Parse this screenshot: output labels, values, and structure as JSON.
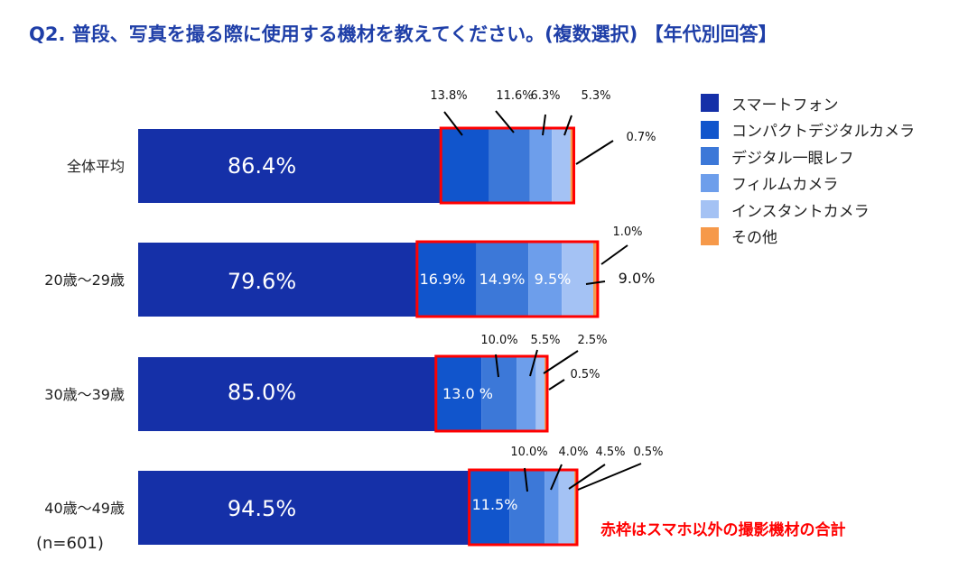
{
  "title": "Q2. 普段、写真を撮る際に使用する機材を教えてください。(複数選択) 【年代別回答】",
  "sample_size": "(n=601)",
  "note": "赤枠はスマホ以外の撮影機材の合計",
  "chart_data": {
    "type": "bar",
    "orientation": "horizontal",
    "stacked": true,
    "categories": [
      "全体平均",
      "20歳～29歳",
      "30歳～39歳",
      "40歳～49歳"
    ],
    "series": [
      {
        "name": "スマートフォン",
        "color": "#1530a8",
        "values": [
          86.4,
          79.6,
          85.0,
          94.5
        ],
        "labels": [
          "86.4%",
          "79.6%",
          "85.0%",
          "94.5%"
        ]
      },
      {
        "name": "コンパクトデジタルカメラ",
        "color": "#1155cc",
        "values": [
          13.8,
          16.9,
          13.0,
          11.5
        ],
        "labels": [
          "13.8%",
          "16.9%",
          "13.0 %",
          "11.5%"
        ]
      },
      {
        "name": "デジタル一眼レフ",
        "color": "#3c78d8",
        "values": [
          11.6,
          14.9,
          10.0,
          10.0
        ],
        "labels": [
          "11.6%",
          "14.9%",
          "10.0%",
          "10.0%"
        ]
      },
      {
        "name": "フィルムカメラ",
        "color": "#6d9eeb",
        "values": [
          6.3,
          9.5,
          5.5,
          4.0
        ],
        "labels": [
          "6.3%",
          "9.5%",
          "5.5%",
          "4.0%"
        ]
      },
      {
        "name": "インスタントカメラ",
        "color": "#a4c2f4",
        "values": [
          5.3,
          9.0,
          2.5,
          4.5
        ],
        "labels": [
          "5.3%",
          "9.0%",
          "2.5%",
          "4.5%"
        ]
      },
      {
        "name": "その他",
        "color": "#f6994a",
        "values": [
          0.7,
          1.0,
          0.5,
          0.5
        ],
        "labels": [
          "0.7%",
          "1.0%",
          "0.5%",
          "0.5%"
        ]
      }
    ],
    "highlight_color": "#ff0000",
    "legend_position": "right",
    "grid": false
  }
}
